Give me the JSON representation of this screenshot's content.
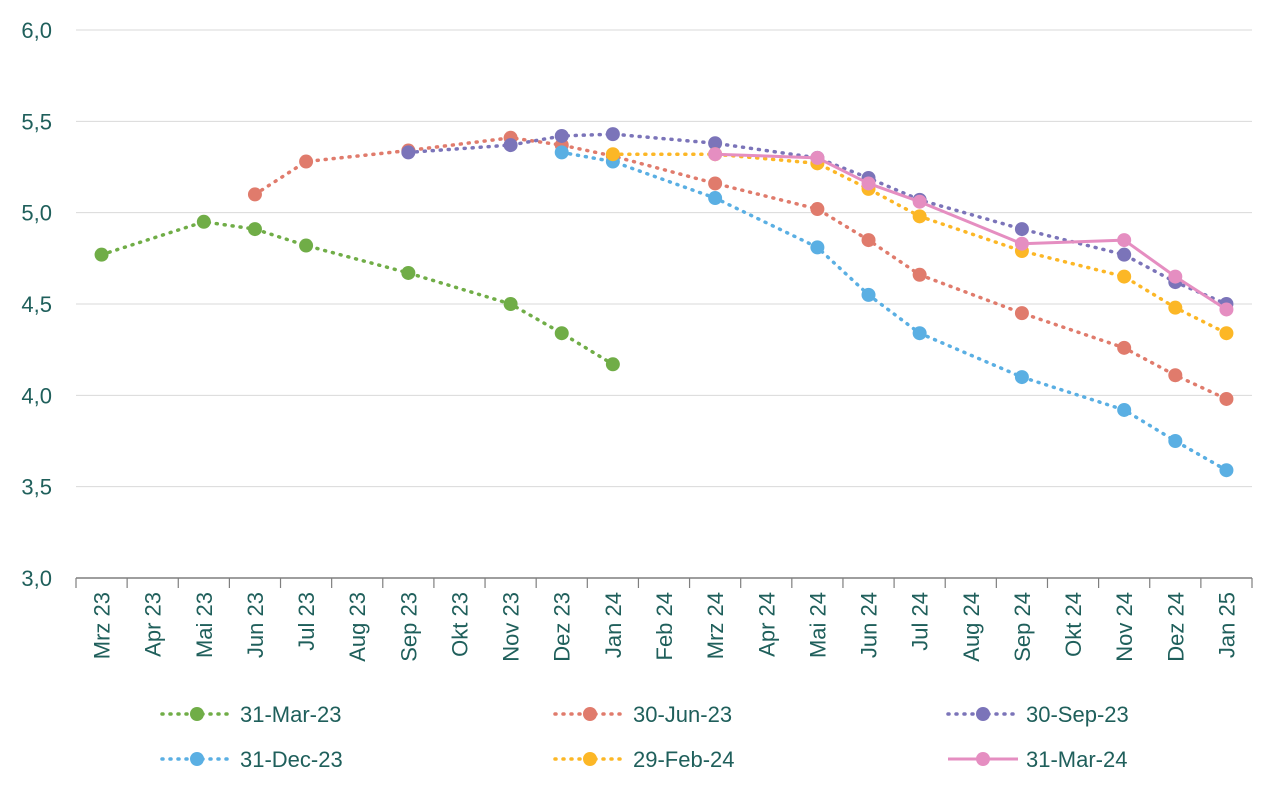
{
  "chart_data": {
    "type": "line",
    "categories": [
      "Mrz 23",
      "Apr 23",
      "Mai 23",
      "Jun 23",
      "Jul 23",
      "Aug 23",
      "Sep 23",
      "Okt 23",
      "Nov 23",
      "Dez 23",
      "Jan 24",
      "Feb 24",
      "Mrz 24",
      "Apr 24",
      "Mai 24",
      "Jun 24",
      "Jul 24",
      "Aug 24",
      "Sep 24",
      "Okt 24",
      "Nov 24",
      "Dez 24",
      "Jan 25"
    ],
    "ylim": [
      3.0,
      6.0
    ],
    "yticks": [
      "3,0",
      "3,5",
      "4,0",
      "4,5",
      "5,0",
      "5,5",
      "6,0"
    ],
    "grid": true,
    "legend_position": "bottom",
    "series": [
      {
        "name": "31-Mar-23",
        "color": "#70ad47",
        "dash": "dotted",
        "values": [
          4.77,
          null,
          4.95,
          4.91,
          4.82,
          null,
          4.67,
          null,
          4.5,
          4.34,
          4.17,
          null,
          null,
          null,
          null,
          null,
          null,
          null,
          null,
          null,
          null,
          null,
          null
        ]
      },
      {
        "name": "30-Jun-23",
        "color": "#e07b6c",
        "dash": "dotted",
        "values": [
          null,
          null,
          null,
          5.1,
          5.28,
          null,
          5.34,
          null,
          5.41,
          5.37,
          5.31,
          null,
          5.16,
          null,
          5.02,
          4.85,
          4.66,
          null,
          4.45,
          null,
          4.26,
          4.11,
          3.98
        ]
      },
      {
        "name": "30-Sep-23",
        "color": "#7b74b9",
        "dash": "dotted",
        "values": [
          null,
          null,
          null,
          null,
          null,
          null,
          5.33,
          null,
          5.37,
          5.42,
          5.43,
          null,
          5.38,
          null,
          5.3,
          5.19,
          5.07,
          null,
          4.91,
          null,
          4.77,
          4.62,
          4.5
        ]
      },
      {
        "name": "31-Dec-23",
        "color": "#5aafe3",
        "dash": "dotted",
        "values": [
          null,
          null,
          null,
          null,
          null,
          null,
          null,
          null,
          null,
          5.33,
          5.28,
          null,
          5.08,
          null,
          4.81,
          4.55,
          4.34,
          null,
          4.1,
          null,
          3.92,
          3.75,
          3.59
        ]
      },
      {
        "name": "29-Feb-24",
        "color": "#fcb726",
        "dash": "dotted",
        "values": [
          null,
          null,
          null,
          null,
          null,
          null,
          null,
          null,
          null,
          null,
          5.32,
          null,
          5.32,
          null,
          5.27,
          5.13,
          4.98,
          null,
          4.79,
          null,
          4.65,
          4.48,
          4.34
        ]
      },
      {
        "name": "31-Mar-24",
        "color": "#e58ec1",
        "dash": "solid",
        "values": [
          null,
          null,
          null,
          null,
          null,
          null,
          null,
          null,
          null,
          null,
          null,
          null,
          5.32,
          null,
          5.3,
          5.16,
          5.06,
          null,
          4.83,
          null,
          4.85,
          4.65,
          4.47
        ]
      }
    ]
  }
}
